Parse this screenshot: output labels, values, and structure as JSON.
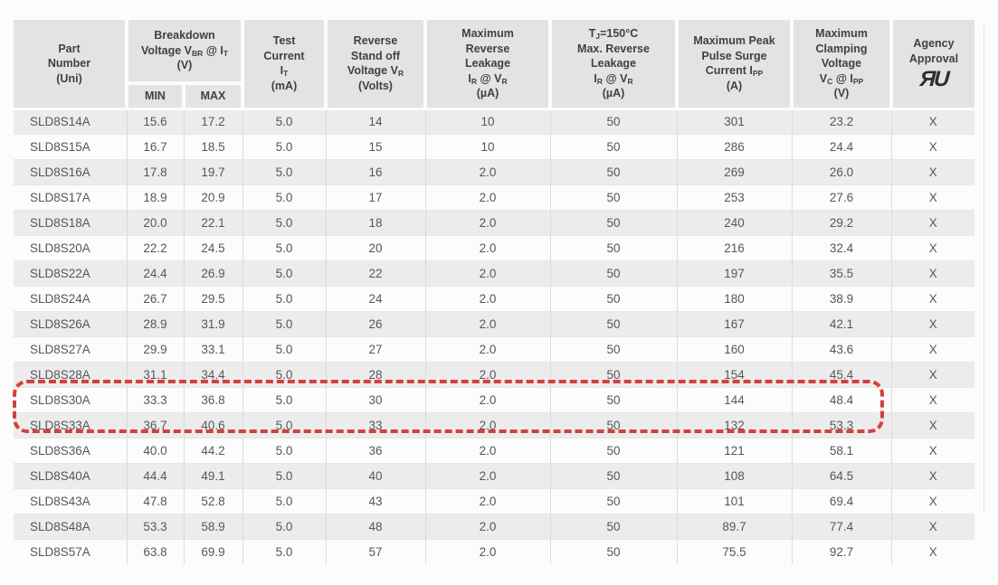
{
  "colors": {
    "highlight_red": "#d4403c",
    "header_bg": "#e3e3e3",
    "row_stripe_bg": "#ececec",
    "header_text": "#414141",
    "data_text": "#575757"
  },
  "table": {
    "header": {
      "part": {
        "lines": [
          [
            {
              "t": "Part"
            }
          ],
          [
            {
              "t": "Number"
            }
          ],
          [
            {
              "t": "(Uni)"
            }
          ]
        ]
      },
      "breakdown": {
        "lines": [
          [
            {
              "t": "Breakdown"
            }
          ],
          [
            {
              "t": "Voltage V"
            },
            {
              "s": "BR"
            },
            {
              "t": " @ I"
            },
            {
              "s": "T"
            }
          ],
          [
            {
              "t": "(V)"
            }
          ]
        ],
        "min_label": "MIN",
        "max_label": "MAX"
      },
      "test_current": {
        "lines": [
          [
            {
              "t": "Test"
            }
          ],
          [
            {
              "t": "Current"
            }
          ],
          [
            {
              "t": "I"
            },
            {
              "s": "T"
            }
          ],
          [
            {
              "t": "(mA)"
            }
          ]
        ]
      },
      "standoff": {
        "lines": [
          [
            {
              "t": "Reverse"
            }
          ],
          [
            {
              "t": "Stand off"
            }
          ],
          [
            {
              "t": "Voltage V"
            },
            {
              "s": "R"
            }
          ],
          [
            {
              "t": "(Volts)"
            }
          ]
        ]
      },
      "max_leakage": {
        "lines": [
          [
            {
              "t": "Maximum"
            }
          ],
          [
            {
              "t": "Reverse"
            }
          ],
          [
            {
              "t": "Leakage"
            }
          ],
          [
            {
              "t": "I"
            },
            {
              "s": "R"
            },
            {
              "t": " @ V"
            },
            {
              "s": "R"
            }
          ],
          [
            {
              "t": "(µA)"
            }
          ]
        ]
      },
      "tj_leakage": {
        "lines": [
          [
            {
              "t": "T"
            },
            {
              "s": "J"
            },
            {
              "t": "=150°C"
            }
          ],
          [
            {
              "t": "Max. Reverse"
            }
          ],
          [
            {
              "t": "Leakage"
            }
          ],
          [
            {
              "t": "I"
            },
            {
              "s": "R"
            },
            {
              "t": " @ V"
            },
            {
              "s": "R"
            }
          ],
          [
            {
              "t": "(µA)"
            }
          ]
        ]
      },
      "surge": {
        "lines": [
          [
            {
              "t": "Maximum Peak"
            }
          ],
          [
            {
              "t": "Pulse Surge"
            }
          ],
          [
            {
              "t": "Current I"
            },
            {
              "s": "PP"
            }
          ],
          [
            {
              "t": "(A)"
            }
          ]
        ]
      },
      "clamping": {
        "lines": [
          [
            {
              "t": "Maximum"
            }
          ],
          [
            {
              "t": "Clamping"
            }
          ],
          [
            {
              "t": "Voltage"
            }
          ],
          [
            {
              "t": "V"
            },
            {
              "s": "C"
            },
            {
              "t": " @ I"
            },
            {
              "s": "PP"
            }
          ],
          [
            {
              "t": "(V)"
            }
          ]
        ]
      },
      "agency": {
        "lines": [
          [
            {
              "t": "Agency"
            }
          ],
          [
            {
              "t": "Approval"
            }
          ]
        ],
        "logo_icon": "ul-recognized-component-mark",
        "logo_glyph": "ЯU"
      }
    },
    "columns_order": [
      "part",
      "min",
      "max",
      "test",
      "standoff",
      "leakage",
      "tj",
      "surge",
      "clamp",
      "agency"
    ],
    "rows": [
      {
        "part": "SLD8S14A",
        "min": "15.6",
        "max": "17.2",
        "test": "5.0",
        "standoff": "14",
        "leakage": "10",
        "tj": "50",
        "surge": "301",
        "clamp": "23.2",
        "agency": "X",
        "highlight": false
      },
      {
        "part": "SLD8S15A",
        "min": "16.7",
        "max": "18.5",
        "test": "5.0",
        "standoff": "15",
        "leakage": "10",
        "tj": "50",
        "surge": "286",
        "clamp": "24.4",
        "agency": "X",
        "highlight": false
      },
      {
        "part": "SLD8S16A",
        "min": "17.8",
        "max": "19.7",
        "test": "5.0",
        "standoff": "16",
        "leakage": "2.0",
        "tj": "50",
        "surge": "269",
        "clamp": "26.0",
        "agency": "X",
        "highlight": false
      },
      {
        "part": "SLD8S17A",
        "min": "18.9",
        "max": "20.9",
        "test": "5.0",
        "standoff": "17",
        "leakage": "2.0",
        "tj": "50",
        "surge": "253",
        "clamp": "27.6",
        "agency": "X",
        "highlight": false
      },
      {
        "part": "SLD8S18A",
        "min": "20.0",
        "max": "22.1",
        "test": "5.0",
        "standoff": "18",
        "leakage": "2.0",
        "tj": "50",
        "surge": "240",
        "clamp": "29.2",
        "agency": "X",
        "highlight": false
      },
      {
        "part": "SLD8S20A",
        "min": "22.2",
        "max": "24.5",
        "test": "5.0",
        "standoff": "20",
        "leakage": "2.0",
        "tj": "50",
        "surge": "216",
        "clamp": "32.4",
        "agency": "X",
        "highlight": false
      },
      {
        "part": "SLD8S22A",
        "min": "24.4",
        "max": "26.9",
        "test": "5.0",
        "standoff": "22",
        "leakage": "2.0",
        "tj": "50",
        "surge": "197",
        "clamp": "35.5",
        "agency": "X",
        "highlight": false
      },
      {
        "part": "SLD8S24A",
        "min": "26.7",
        "max": "29.5",
        "test": "5.0",
        "standoff": "24",
        "leakage": "2.0",
        "tj": "50",
        "surge": "180",
        "clamp": "38.9",
        "agency": "X",
        "highlight": false
      },
      {
        "part": "SLD8S26A",
        "min": "28.9",
        "max": "31.9",
        "test": "5.0",
        "standoff": "26",
        "leakage": "2.0",
        "tj": "50",
        "surge": "167",
        "clamp": "42.1",
        "agency": "X",
        "highlight": false
      },
      {
        "part": "SLD8S27A",
        "min": "29.9",
        "max": "33.1",
        "test": "5.0",
        "standoff": "27",
        "leakage": "2.0",
        "tj": "50",
        "surge": "160",
        "clamp": "43.6",
        "agency": "X",
        "highlight": false
      },
      {
        "part": "SLD8S28A",
        "min": "31.1",
        "max": "34.4",
        "test": "5.0",
        "standoff": "28",
        "leakage": "2.0",
        "tj": "50",
        "surge": "154",
        "clamp": "45.4",
        "agency": "X",
        "highlight": false
      },
      {
        "part": "SLD8S30A",
        "min": "33.3",
        "max": "36.8",
        "test": "5.0",
        "standoff": "30",
        "leakage": "2.0",
        "tj": "50",
        "surge": "144",
        "clamp": "48.4",
        "agency": "X",
        "highlight": true
      },
      {
        "part": "SLD8S33A",
        "min": "36.7",
        "max": "40.6",
        "test": "5.0",
        "standoff": "33",
        "leakage": "2.0",
        "tj": "50",
        "surge": "132",
        "clamp": "53.3",
        "agency": "X",
        "highlight": true
      },
      {
        "part": "SLD8S36A",
        "min": "40.0",
        "max": "44.2",
        "test": "5.0",
        "standoff": "36",
        "leakage": "2.0",
        "tj": "50",
        "surge": "121",
        "clamp": "58.1",
        "agency": "X",
        "highlight": false
      },
      {
        "part": "SLD8S40A",
        "min": "44.4",
        "max": "49.1",
        "test": "5.0",
        "standoff": "40",
        "leakage": "2.0",
        "tj": "50",
        "surge": "108",
        "clamp": "64.5",
        "agency": "X",
        "highlight": false
      },
      {
        "part": "SLD8S43A",
        "min": "47.8",
        "max": "52.8",
        "test": "5.0",
        "standoff": "43",
        "leakage": "2.0",
        "tj": "50",
        "surge": "101",
        "clamp": "69.4",
        "agency": "X",
        "highlight": false
      },
      {
        "part": "SLD8S48A",
        "min": "53.3",
        "max": "58.9",
        "test": "5.0",
        "standoff": "48",
        "leakage": "2.0",
        "tj": "50",
        "surge": "89.7",
        "clamp": "77.4",
        "agency": "X",
        "highlight": false
      },
      {
        "part": "SLD8S57A",
        "min": "63.8",
        "max": "69.9",
        "test": "5.0",
        "standoff": "57",
        "leakage": "2.0",
        "tj": "50",
        "surge": "75.5",
        "clamp": "92.7",
        "agency": "X",
        "highlight": false
      }
    ],
    "highlighted_parts": [
      "SLD8S30A",
      "SLD8S33A"
    ]
  }
}
